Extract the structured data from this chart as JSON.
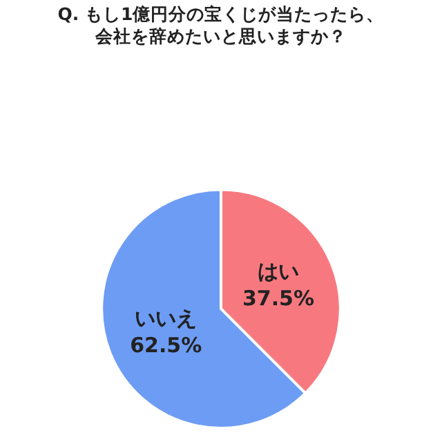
{
  "chart_data": {
    "type": "pie",
    "title": "Q. もし1億円分の宝くじが当たったら、",
    "subtitle": "会社を辞めたいと思いますか？",
    "categories": [
      "はい",
      "いいえ"
    ],
    "values": [
      37.5,
      62.5
    ],
    "value_labels": [
      "37.5%",
      "62.5%"
    ],
    "colors": [
      "#f7797f",
      "#6d9cf4"
    ],
    "legend": false
  }
}
